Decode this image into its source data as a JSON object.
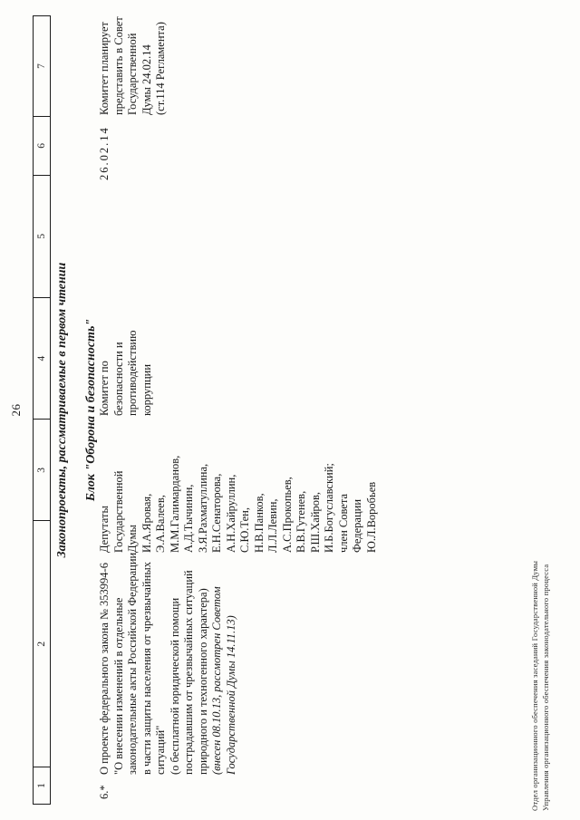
{
  "colors": {
    "ink": "#1a1a1a",
    "paper": "#fdfdfb"
  },
  "page": {
    "number": "26"
  },
  "headings": {
    "section": "Законопроекты, рассматриваемые в первом чтении",
    "block": "Блок \"Оборона и безопасность\""
  },
  "table": {
    "columns": [
      "1",
      "2",
      "3",
      "4",
      "5",
      "6",
      "7"
    ]
  },
  "row": {
    "number": "6.*",
    "bill_lines": [
      "О проекте федерального закона № 353994-6",
      "\"О внесении изменений в отдельные",
      "законодательные акты Российской Федерации",
      "в части защиты населения от чрезвычайных",
      "ситуаций\"",
      "(о бесплатной юридической помощи",
      "пострадавшим от чрезвычайных ситуаций",
      "природного и техногенного характера)",
      {
        "text": "(внесен 08.10.13, рассмотрен Советом",
        "italic": true
      },
      {
        "text": "Государственной Думы 14.11.13)",
        "italic": true
      }
    ],
    "initiator_lines": [
      "Депутаты",
      "Государственной",
      "Думы",
      "И.А.Яровая,",
      "Э.А.Валеев,",
      "М.М.Галимарданов,",
      "А.Д.Тычинин,",
      "З.Я.Рахматуллина,",
      "Е.Н.Сенаторова,",
      "А.Н.Хайруллин,",
      "С.Ю.Тен,",
      "Н.В.Панков,",
      "Л.Л.Левин,",
      "А.С.Прокопьев,",
      "В.В.Гутенев,",
      "Р.Ш.Хайров,",
      "И.Б.Богуславский;",
      "член Совета",
      "Федерации",
      "Ю.Л.Воробьев"
    ],
    "committee_lines": [
      "Комитет по",
      "безопасности и",
      "противодействию",
      "коррупции"
    ],
    "date": "26.02.14",
    "plan_lines": [
      "Комитет планирует",
      "представить в Совет",
      "Государственной",
      "Думы 24.02.14",
      "(ст.114 Регламента)"
    ]
  },
  "footer": {
    "lines": [
      "Отдел организационного обеспечения заседаний Государственной Думы",
      "Управления организационного обеспечения законодательного процесса"
    ]
  }
}
